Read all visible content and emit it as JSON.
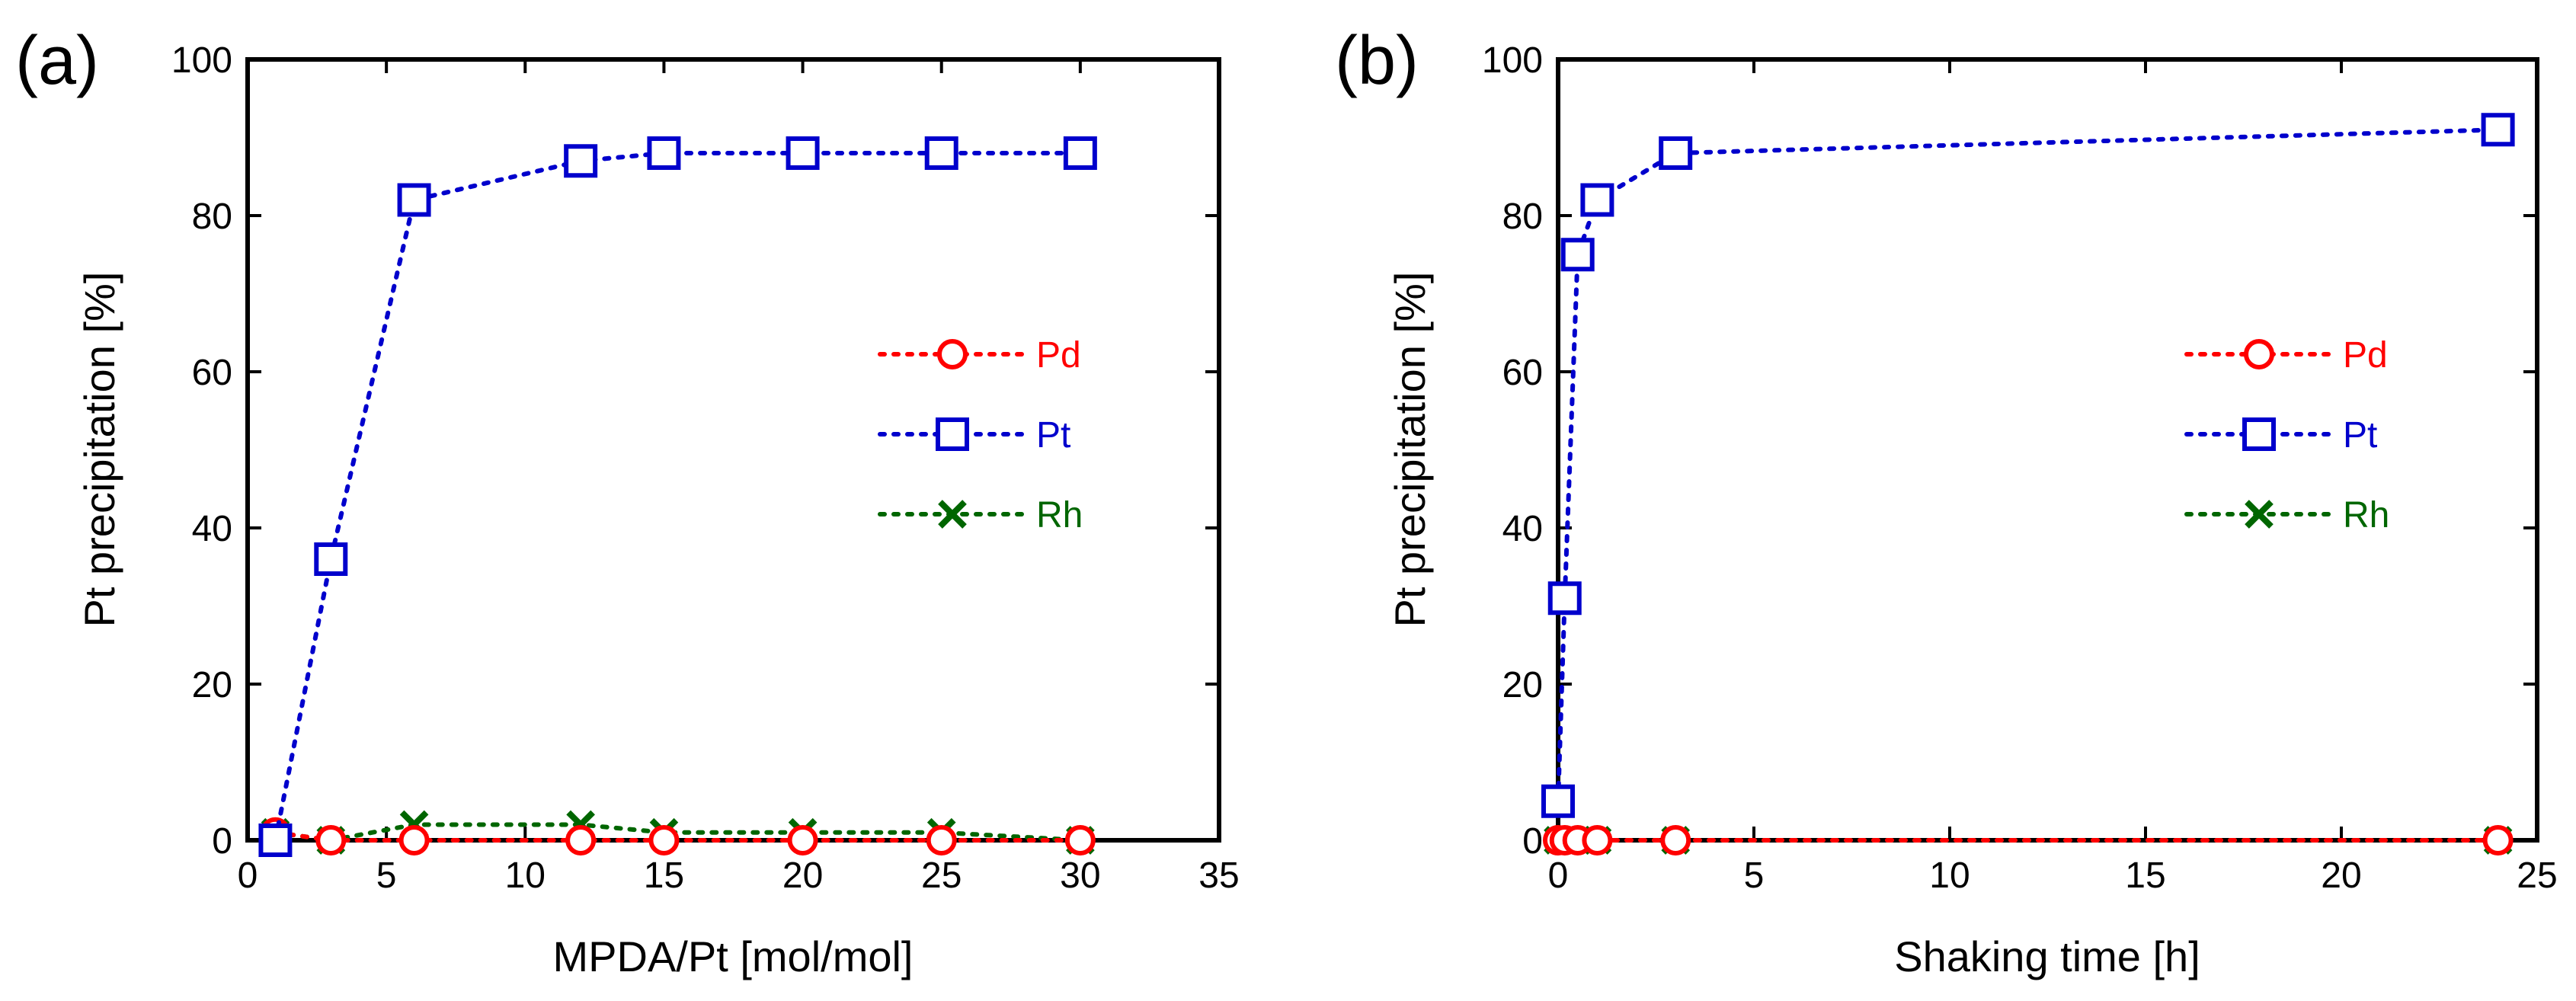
{
  "colors": {
    "Pd": "#ff0000",
    "Pt": "#0000cc",
    "Rh": "#006600"
  },
  "chart_data": [
    {
      "type": "line",
      "panel_label": "(a)",
      "xlabel": "MPDA/Pt [mol/mol]",
      "ylabel": "Pt precipitation [%]",
      "xlim": [
        0,
        35
      ],
      "ylim": [
        0,
        100
      ],
      "xticks": [
        "0",
        "5",
        "10",
        "15",
        "20",
        "25",
        "30",
        "35"
      ],
      "yticks": [
        "0",
        "20",
        "40",
        "60",
        "80",
        "100"
      ],
      "legend_position": "right-middle",
      "series": [
        {
          "name": "Pd",
          "marker": "circle",
          "x": [
            1,
            3,
            6,
            12,
            15,
            20,
            25,
            30
          ],
          "y": [
            1,
            0,
            0,
            0,
            0,
            0,
            0,
            0
          ]
        },
        {
          "name": "Pt",
          "marker": "square",
          "x": [
            1,
            3,
            6,
            12,
            15,
            20,
            25,
            30
          ],
          "y": [
            0,
            36,
            82,
            87,
            88,
            88,
            88,
            88
          ]
        },
        {
          "name": "Rh",
          "marker": "x",
          "x": [
            1,
            3,
            6,
            12,
            15,
            20,
            25,
            30
          ],
          "y": [
            1,
            0,
            2,
            2,
            1,
            1,
            1,
            0
          ]
        }
      ]
    },
    {
      "type": "line",
      "panel_label": "(b)",
      "xlabel": "Shaking time [h]",
      "ylabel": "Pt precipitation [%]",
      "xlim": [
        0,
        25
      ],
      "ylim": [
        0,
        100
      ],
      "xticks": [
        "0",
        "5",
        "10",
        "15",
        "20",
        "25"
      ],
      "yticks": [
        "0",
        "20",
        "40",
        "60",
        "80",
        "100"
      ],
      "legend_position": "right-middle",
      "series": [
        {
          "name": "Pd",
          "marker": "circle",
          "x": [
            0,
            0.17,
            0.5,
            1,
            3,
            24
          ],
          "y": [
            0,
            0,
            0,
            0,
            0,
            0
          ]
        },
        {
          "name": "Pt",
          "marker": "square",
          "x": [
            0,
            0.17,
            0.5,
            1,
            3,
            24
          ],
          "y": [
            5,
            31,
            75,
            82,
            88,
            91
          ]
        },
        {
          "name": "Rh",
          "marker": "x",
          "x": [
            0,
            0.17,
            0.5,
            1,
            3,
            24
          ],
          "y": [
            0,
            0,
            0,
            0,
            0,
            0
          ]
        }
      ]
    }
  ]
}
